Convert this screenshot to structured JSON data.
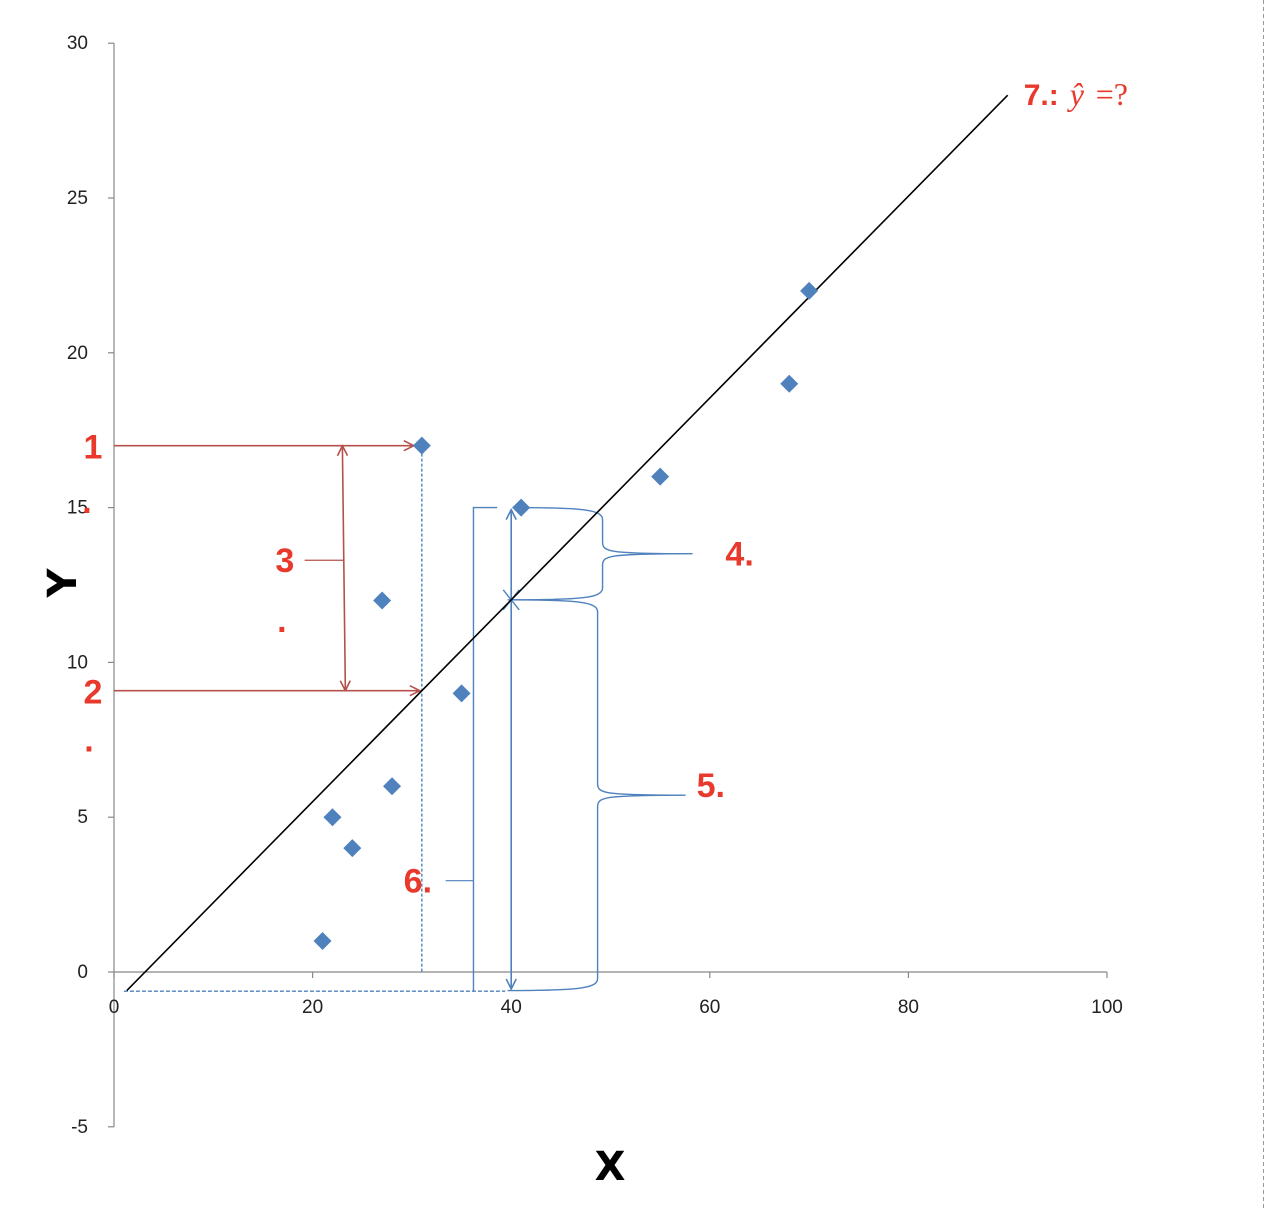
{
  "chart_data": {
    "type": "scatter",
    "title": "",
    "xlabel": "X",
    "ylabel": "Y",
    "xlim": [
      0,
      100
    ],
    "ylim": [
      -5,
      30
    ],
    "x_ticks": [
      "0",
      "20",
      "40",
      "60",
      "80",
      "100"
    ],
    "x_tick_values": [
      0,
      20,
      40,
      60,
      80,
      100
    ],
    "y_ticks": [
      "-5",
      "0",
      "5",
      "10",
      "15",
      "20",
      "25",
      "30"
    ],
    "y_tick_values": [
      -5,
      0,
      5,
      10,
      15,
      20,
      25,
      30
    ],
    "grid": false,
    "legend": "none",
    "points": [
      {
        "x": 21,
        "y": 1
      },
      {
        "x": 22,
        "y": 5
      },
      {
        "x": 24,
        "y": 4
      },
      {
        "x": 27,
        "y": 12
      },
      {
        "x": 28,
        "y": 6
      },
      {
        "x": 31,
        "y": 17
      },
      {
        "x": 35,
        "y": 9
      },
      {
        "x": 41,
        "y": 15
      },
      {
        "x": 55,
        "y": 16
      },
      {
        "x": 68,
        "y": 19
      },
      {
        "x": 70,
        "y": 22
      }
    ],
    "regression_line": {
      "x_start": 1.3,
      "x_end": 90,
      "intercept": -1.02,
      "slope": 0.326
    },
    "annotations": {
      "label_1": "1",
      "label_1_dot": ".",
      "label_2": "2",
      "label_2_dot": ".",
      "label_3": "3",
      "label_3_dot": ".",
      "label_4": "4.",
      "label_5": "5.",
      "label_6": "6.",
      "label_7_prefix": "7.:",
      "label_7_yhat": "ŷ",
      "label_7_suffix": "=?"
    },
    "colors": {
      "marker": "#4f81bd",
      "line": "#000000",
      "red_annotation": "#e8392c",
      "red_arrow": "#b5504b",
      "blue_annotation": "#4f81bd",
      "axis": "#888888"
    }
  }
}
